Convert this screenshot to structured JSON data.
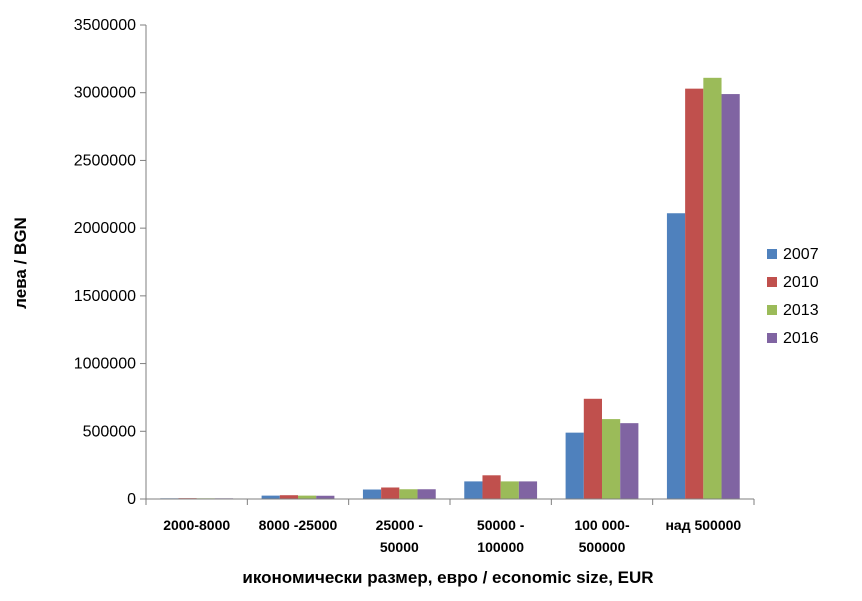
{
  "chart_data": {
    "type": "bar",
    "title": "",
    "xlabel": "икономически  размер, евро / economic size, EUR",
    "ylabel": "лева / BGN",
    "ylim": [
      0,
      3500000
    ],
    "yticks": [
      0,
      500000,
      1000000,
      1500000,
      2000000,
      2500000,
      3000000,
      3500000
    ],
    "ytick_labels": [
      "0",
      "500000",
      "1000000",
      "1500000",
      "2000000",
      "2500000",
      "3000000",
      "3500000"
    ],
    "categories": [
      [
        "2000-8000"
      ],
      [
        "8000 -25000"
      ],
      [
        "25000 -",
        "50000"
      ],
      [
        "50000 -",
        "100000"
      ],
      [
        "100 000-",
        "500000"
      ],
      [
        "над 500000"
      ]
    ],
    "series": [
      {
        "name": "2007",
        "color": "#4F81BD",
        "values": [
          5000,
          25000,
          70000,
          130000,
          490000,
          2110000
        ]
      },
      {
        "name": "2010",
        "color": "#C0504D",
        "values": [
          6000,
          28000,
          85000,
          175000,
          740000,
          3030000
        ]
      },
      {
        "name": "2013",
        "color": "#9BBB59",
        "values": [
          5000,
          25000,
          72000,
          130000,
          590000,
          3110000
        ]
      },
      {
        "name": "2016",
        "color": "#8064A2",
        "values": [
          5000,
          24000,
          72000,
          130000,
          560000,
          2990000
        ]
      }
    ],
    "grid": false,
    "legend": "right"
  }
}
